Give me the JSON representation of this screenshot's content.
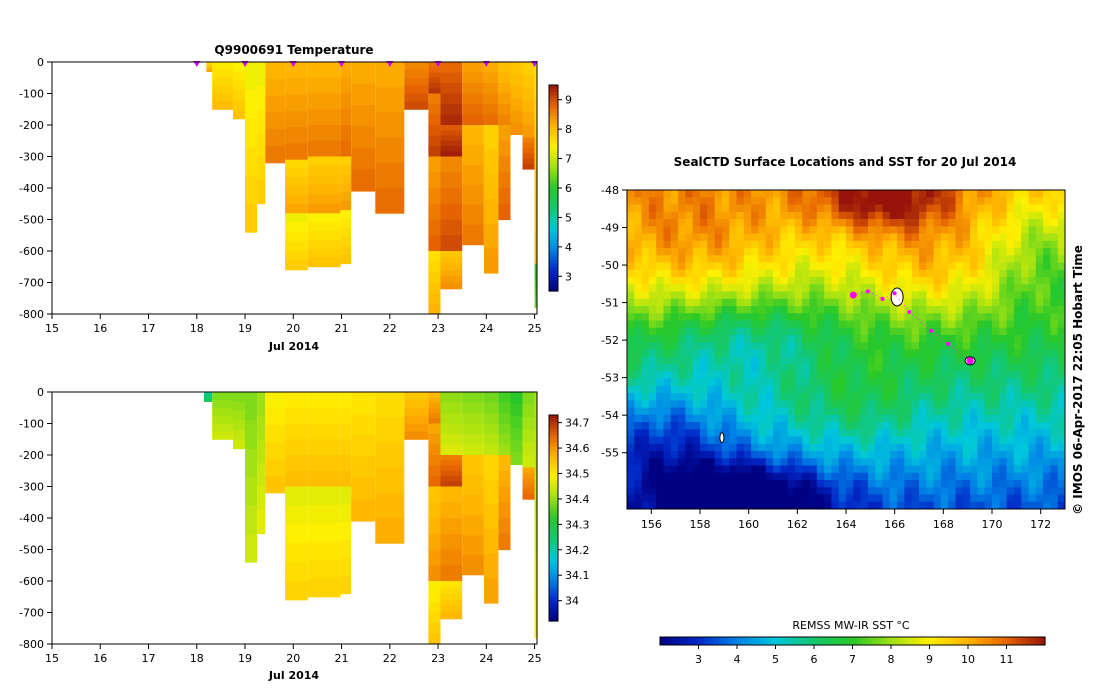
{
  "chart_data": [
    {
      "type": "heatmap",
      "title": "Q9900691  Temperature",
      "xlabel": "Jul 2014",
      "x_ticks": [
        "15",
        "16",
        "17",
        "18",
        "19",
        "20",
        "21",
        "22",
        "23",
        "24",
        "25"
      ],
      "y_ticks": [
        "0",
        "-100",
        "-200",
        "-300",
        "-400",
        "-500",
        "-600",
        "-700",
        "-800"
      ],
      "xlim": [
        15,
        25.05
      ],
      "ylim": [
        -800,
        0
      ],
      "colorbar": {
        "ticks": [
          "3",
          "4",
          "5",
          "6",
          "7",
          "8",
          "9"
        ],
        "range": [
          2.5,
          9.5
        ]
      },
      "profile_markers_x": [
        18.0,
        19.0,
        20.0,
        21.0,
        22.0,
        23.0,
        24.0,
        25.0
      ],
      "columns": [
        {
          "x0": 18.2,
          "x1": 18.32,
          "depth": 30,
          "segments": [
            [
              0,
              30,
              8.0
            ]
          ]
        },
        {
          "x0": 18.32,
          "x1": 18.75,
          "depth": 150,
          "segments": [
            [
              0,
              150,
              7.8
            ]
          ]
        },
        {
          "x0": 18.75,
          "x1": 19.0,
          "depth": 180,
          "segments": [
            [
              0,
              180,
              7.7
            ]
          ]
        },
        {
          "x0": 19.0,
          "x1": 19.25,
          "depth": 540,
          "segments": [
            [
              0,
              540,
              7.6
            ]
          ]
        },
        {
          "x0": 19.25,
          "x1": 19.42,
          "depth": 450,
          "segments": [
            [
              0,
              450,
              7.6
            ]
          ]
        },
        {
          "x0": 19.42,
          "x1": 19.83,
          "depth": 320,
          "segments": [
            [
              0,
              320,
              8.4
            ],
            [
              320,
              320,
              7.9
            ]
          ]
        },
        {
          "x0": 19.83,
          "x1": 20.3,
          "depth": 660,
          "segments": [
            [
              0,
              310,
              8.4
            ],
            [
              310,
              480,
              8.0
            ],
            [
              480,
              660,
              7.6
            ]
          ]
        },
        {
          "x0": 20.3,
          "x1": 20.98,
          "depth": 650,
          "segments": [
            [
              0,
              300,
              8.4
            ],
            [
              300,
              480,
              8.1
            ],
            [
              480,
              650,
              7.7
            ]
          ]
        },
        {
          "x0": 20.98,
          "x1": 21.2,
          "depth": 640,
          "segments": [
            [
              0,
              300,
              8.5
            ],
            [
              300,
              470,
              8.1
            ],
            [
              470,
              640,
              7.7
            ]
          ]
        },
        {
          "x0": 21.2,
          "x1": 21.7,
          "depth": 410,
          "segments": [
            [
              0,
              410,
              8.5
            ]
          ]
        },
        {
          "x0": 21.7,
          "x1": 22.3,
          "depth": 480,
          "segments": [
            [
              0,
              480,
              8.5
            ]
          ]
        },
        {
          "x0": 22.3,
          "x1": 22.8,
          "depth": 150,
          "segments": [
            [
              0,
              150,
              8.8
            ]
          ]
        },
        {
          "x0": 22.8,
          "x1": 23.05,
          "depth": 800,
          "segments": [
            [
              0,
              100,
              9.0
            ],
            [
              100,
              300,
              8.9
            ],
            [
              300,
              600,
              8.6
            ],
            [
              600,
              800,
              7.9
            ]
          ]
        },
        {
          "x0": 23.05,
          "x1": 23.5,
          "depth": 720,
          "segments": [
            [
              0,
              200,
              9.1
            ],
            [
              200,
              300,
              9.2
            ],
            [
              300,
              600,
              8.8
            ],
            [
              600,
              720,
              8.2
            ]
          ]
        },
        {
          "x0": 23.5,
          "x1": 23.95,
          "depth": 580,
          "segments": [
            [
              0,
              200,
              8.6
            ],
            [
              200,
              580,
              8.4
            ]
          ]
        },
        {
          "x0": 23.95,
          "x1": 24.25,
          "depth": 670,
          "segments": [
            [
              0,
              200,
              8.5
            ],
            [
              200,
              670,
              8.1
            ]
          ]
        },
        {
          "x0": 24.25,
          "x1": 24.5,
          "depth": 500,
          "segments": [
            [
              0,
              200,
              8.3
            ],
            [
              200,
              500,
              8.6
            ]
          ]
        },
        {
          "x0": 24.5,
          "x1": 24.75,
          "depth": 230,
          "segments": [
            [
              0,
              230,
              8.2
            ]
          ]
        },
        {
          "x0": 24.75,
          "x1": 25.0,
          "depth": 340,
          "segments": [
            [
              0,
              240,
              8.1
            ],
            [
              240,
              340,
              8.9
            ]
          ]
        },
        {
          "x0": 25.0,
          "x1": 25.05,
          "depth": 780,
          "segments": [
            [
              0,
              640,
              7.9
            ],
            [
              640,
              780,
              6.2
            ]
          ]
        }
      ]
    },
    {
      "type": "heatmap",
      "title": "",
      "xlabel": "Jul 2014",
      "x_ticks": [
        "15",
        "16",
        "17",
        "18",
        "19",
        "20",
        "21",
        "22",
        "23",
        "24",
        "25"
      ],
      "y_ticks": [
        "0",
        "-100",
        "-200",
        "-300",
        "-400",
        "-500",
        "-600",
        "-700",
        "-800"
      ],
      "xlim": [
        15,
        25.05
      ],
      "ylim": [
        -800,
        0
      ],
      "colorbar": {
        "ticks": [
          "34",
          "34.1",
          "34.2",
          "34.3",
          "34.4",
          "34.5",
          "34.6",
          "34.7"
        ],
        "range": [
          33.92,
          34.73
        ]
      },
      "columns": [
        {
          "x0": 18.15,
          "x1": 18.32,
          "depth": 30,
          "segments": [
            [
              0,
              30,
              34.25
            ]
          ]
        },
        {
          "x0": 18.32,
          "x1": 18.75,
          "depth": 150,
          "segments": [
            [
              0,
              150,
              34.42
            ]
          ]
        },
        {
          "x0": 18.75,
          "x1": 19.0,
          "depth": 180,
          "segments": [
            [
              0,
              180,
              34.42
            ]
          ]
        },
        {
          "x0": 19.0,
          "x1": 19.25,
          "depth": 540,
          "segments": [
            [
              0,
              540,
              34.42
            ]
          ]
        },
        {
          "x0": 19.25,
          "x1": 19.42,
          "depth": 450,
          "segments": [
            [
              0,
              450,
              34.44
            ]
          ]
        },
        {
          "x0": 19.42,
          "x1": 19.83,
          "depth": 320,
          "segments": [
            [
              0,
              320,
              34.52
            ]
          ]
        },
        {
          "x0": 19.83,
          "x1": 20.3,
          "depth": 660,
          "segments": [
            [
              0,
              300,
              34.53
            ],
            [
              300,
              660,
              34.5
            ]
          ]
        },
        {
          "x0": 20.3,
          "x1": 20.98,
          "depth": 650,
          "segments": [
            [
              0,
              300,
              34.53
            ],
            [
              300,
              650,
              34.5
            ]
          ]
        },
        {
          "x0": 20.98,
          "x1": 21.2,
          "depth": 640,
          "segments": [
            [
              0,
              300,
              34.53
            ],
            [
              300,
              640,
              34.5
            ]
          ]
        },
        {
          "x0": 21.2,
          "x1": 21.7,
          "depth": 410,
          "segments": [
            [
              0,
              410,
              34.54
            ]
          ]
        },
        {
          "x0": 21.7,
          "x1": 22.3,
          "depth": 480,
          "segments": [
            [
              0,
              480,
              34.55
            ]
          ]
        },
        {
          "x0": 22.3,
          "x1": 22.8,
          "depth": 150,
          "segments": [
            [
              0,
              150,
              34.58
            ]
          ]
        },
        {
          "x0": 22.8,
          "x1": 23.05,
          "depth": 800,
          "segments": [
            [
              0,
              100,
              34.6
            ],
            [
              100,
              300,
              34.62
            ],
            [
              300,
              600,
              34.58
            ],
            [
              600,
              800,
              34.52
            ]
          ]
        },
        {
          "x0": 23.05,
          "x1": 23.5,
          "depth": 720,
          "segments": [
            [
              0,
              200,
              34.43
            ],
            [
              200,
              300,
              34.66
            ],
            [
              300,
              600,
              34.6
            ],
            [
              600,
              720,
              34.54
            ]
          ]
        },
        {
          "x0": 23.5,
          "x1": 23.95,
          "depth": 580,
          "segments": [
            [
              0,
              200,
              34.42
            ],
            [
              200,
              580,
              34.58
            ]
          ]
        },
        {
          "x0": 23.95,
          "x1": 24.25,
          "depth": 670,
          "segments": [
            [
              0,
              200,
              34.41
            ],
            [
              200,
              670,
              34.56
            ]
          ]
        },
        {
          "x0": 24.25,
          "x1": 24.5,
          "depth": 500,
          "segments": [
            [
              0,
              200,
              34.38
            ],
            [
              200,
              500,
              34.6
            ]
          ]
        },
        {
          "x0": 24.5,
          "x1": 24.75,
          "depth": 230,
          "segments": [
            [
              0,
              230,
              34.36
            ]
          ]
        },
        {
          "x0": 24.75,
          "x1": 25.0,
          "depth": 340,
          "segments": [
            [
              0,
              240,
              34.42
            ],
            [
              240,
              340,
              34.62
            ]
          ]
        },
        {
          "x0": 25.0,
          "x1": 25.05,
          "depth": 780,
          "segments": [
            [
              0,
              780,
              34.45
            ]
          ]
        }
      ]
    },
    {
      "type": "heatmap",
      "title": "SealCTD Surface Locations and SST for 20 Jul 2014",
      "x_ticks": [
        "156",
        "158",
        "160",
        "162",
        "164",
        "166",
        "168",
        "170",
        "172"
      ],
      "y_ticks": [
        "-48",
        "-49",
        "-50",
        "-51",
        "-52",
        "-53",
        "-54",
        "-55"
      ],
      "xlim": [
        155,
        173
      ],
      "ylim": [
        -56.5,
        -48
      ],
      "colorbar_label": "REMSS MW-IR SST °C",
      "colorbar": {
        "ticks": [
          "3",
          "4",
          "5",
          "6",
          "7",
          "8",
          "9",
          "10",
          "11"
        ],
        "range": [
          2,
          12
        ]
      },
      "track_points": [
        {
          "lon": 164.3,
          "lat": -50.8,
          "major": true
        },
        {
          "lon": 164.9,
          "lat": -50.7,
          "major": false
        },
        {
          "lon": 165.5,
          "lat": -50.9,
          "major": false
        },
        {
          "lon": 166.0,
          "lat": -50.75,
          "major": false
        },
        {
          "lon": 166.6,
          "lat": -51.25,
          "major": false
        },
        {
          "lon": 167.5,
          "lat": -51.75,
          "major": false
        },
        {
          "lon": 168.2,
          "lat": -52.1,
          "major": false
        },
        {
          "lon": 169.1,
          "lat": -52.55,
          "major": true
        }
      ],
      "credit": "© IMOS 06-Apr-2017 22:05 Hobart Time"
    }
  ]
}
